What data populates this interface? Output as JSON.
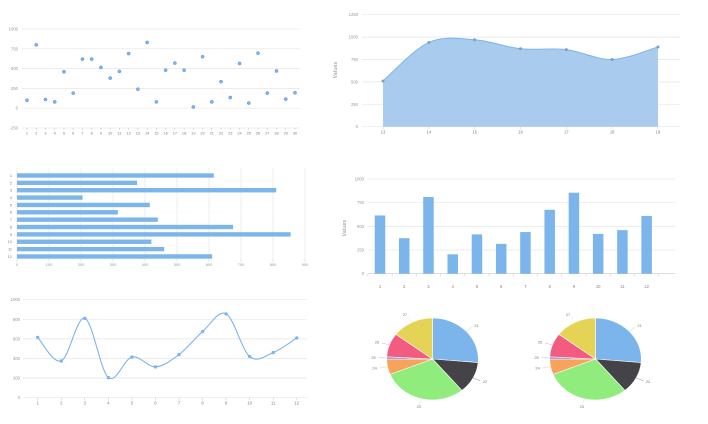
{
  "style": {
    "background": "#ffffff",
    "grid_color": "#e6e6e6",
    "axis_line_color": "#cccccc",
    "tick_color": "#c0c0c0",
    "label_color": "#999999",
    "category_label_color": "#808080",
    "series_blue": "#7cb5ec"
  },
  "chart_data": [
    {
      "id": "scatter",
      "type": "scatter",
      "x": [
        1,
        2,
        3,
        4,
        5,
        6,
        7,
        8,
        9,
        10,
        11,
        12,
        13,
        14,
        15,
        16,
        17,
        18,
        19,
        20,
        21,
        22,
        23,
        24,
        25,
        26,
        27,
        28,
        29,
        30
      ],
      "values": [
        100,
        800,
        110,
        80,
        460,
        190,
        620,
        620,
        515,
        380,
        465,
        690,
        240,
        830,
        80,
        480,
        570,
        480,
        15,
        650,
        80,
        335,
        135,
        565,
        65,
        695,
        190,
        470,
        115,
        195
      ],
      "yticks": [
        1000,
        750,
        500,
        250,
        0,
        -250
      ],
      "ylim": [
        -250,
        1000
      ],
      "xlabel": "",
      "ylabel": "",
      "color": "#7cb5ec",
      "marker_stroke": "#5e97d0"
    },
    {
      "id": "area",
      "type": "area",
      "x": [
        13,
        14,
        15,
        16,
        17,
        18,
        19
      ],
      "values": [
        510,
        940,
        970,
        870,
        860,
        750,
        890
      ],
      "yticks": [
        1250,
        1000,
        750,
        500,
        250,
        0
      ],
      "ylim": [
        0,
        1250
      ],
      "xlabel": "",
      "ylabel": "Values",
      "color": "#7cb5ec",
      "fill_color": "#a9cbee",
      "marker_color": "#7ea1c4"
    },
    {
      "id": "bar-horizontal",
      "type": "bar-horizontal",
      "categories": [
        "1",
        "2",
        "3",
        "4",
        "5",
        "6",
        "7",
        "8",
        "9",
        "10",
        "11",
        "12"
      ],
      "values": [
        615,
        375,
        810,
        205,
        415,
        315,
        440,
        675,
        855,
        420,
        460,
        610
      ],
      "xticks": [
        0,
        100,
        200,
        300,
        400,
        500,
        600,
        700,
        800,
        900
      ],
      "xlim": [
        0,
        900
      ],
      "color": "#7cb5ec"
    },
    {
      "id": "bar-vertical",
      "type": "bar",
      "categories": [
        "1",
        "2",
        "3",
        "4",
        "5",
        "6",
        "7",
        "8",
        "9",
        "10",
        "11",
        "12"
      ],
      "values": [
        615,
        375,
        810,
        205,
        415,
        315,
        440,
        675,
        855,
        420,
        460,
        610
      ],
      "yticks": [
        1000,
        750,
        500,
        250,
        0
      ],
      "ylim": [
        0,
        1000
      ],
      "xlabel": "",
      "ylabel": "Values",
      "color": "#7cb5ec"
    },
    {
      "id": "line",
      "type": "line",
      "x": [
        1,
        2,
        3,
        4,
        5,
        6,
        7,
        8,
        9,
        10,
        11,
        12
      ],
      "values": [
        615,
        375,
        810,
        205,
        415,
        315,
        440,
        675,
        855,
        420,
        460,
        610
      ],
      "yticks": [
        1000,
        800,
        600,
        400,
        200,
        0
      ],
      "ylim": [
        0,
        1000
      ],
      "xlabel": "",
      "ylabel": "",
      "color": "#7cb5ec"
    },
    {
      "id": "pie-left",
      "type": "pie",
      "labels": [
        "21",
        "22",
        "23",
        "24",
        "25",
        "26",
        "27"
      ],
      "values": [
        95,
        45,
        108,
        22,
        3,
        34,
        53
      ],
      "colors": [
        "#7cb5ec",
        "#434348",
        "#90ed7d",
        "#f7a35c",
        "#8085e9",
        "#f15c80",
        "#e4d354"
      ],
      "label_color": "#777777"
    },
    {
      "id": "pie-right",
      "type": "pie",
      "labels": [
        "21",
        "22",
        "23",
        "24",
        "25",
        "26",
        "27"
      ],
      "values": [
        95,
        45,
        108,
        22,
        3,
        34,
        53
      ],
      "colors": [
        "#7cb5ec",
        "#434348",
        "#90ed7d",
        "#f7a35c",
        "#8085e9",
        "#f15c80",
        "#e4d354"
      ],
      "label_color": "#777777"
    }
  ]
}
